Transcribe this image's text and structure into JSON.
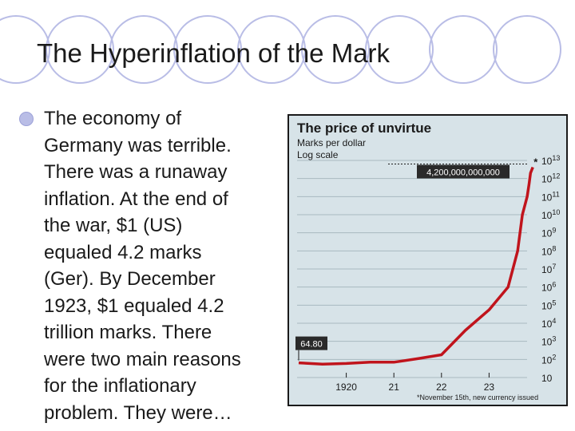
{
  "slide": {
    "title": "The Hyperinflation of the Mark",
    "body_lines": [
      "The economy of",
      "Germany was terrible.",
      "There was a runaway",
      "inflation.  At the end of",
      "the war, $1 (US)",
      "equaled 4.2 marks",
      "(Ger).  By December",
      "1923, $1 equaled 4.2",
      "trillion marks.  There",
      "were two main reasons",
      "for the inflationary",
      "problem.  They were…"
    ]
  },
  "colors": {
    "chart_bg": "#d7e3e8",
    "line": "#c0141c",
    "frame": "#1a1a1a",
    "ring": "#b9bde6"
  },
  "chart_data": {
    "type": "line",
    "title": "The price of unvirtue",
    "subtitle": "Marks per dollar",
    "scale_note": "Log scale",
    "y_scale": "log",
    "ylim": [
      10,
      10000000000000
    ],
    "y_tick_labels": [
      {
        "base": "10",
        "exp": "13"
      },
      {
        "base": "10",
        "exp": "12"
      },
      {
        "base": "10",
        "exp": "11"
      },
      {
        "base": "10",
        "exp": "10"
      },
      {
        "base": "10",
        "exp": "9"
      },
      {
        "base": "10",
        "exp": "8"
      },
      {
        "base": "10",
        "exp": "7"
      },
      {
        "base": "10",
        "exp": "6"
      },
      {
        "base": "10",
        "exp": "5"
      },
      {
        "base": "10",
        "exp": "4"
      },
      {
        "base": "10",
        "exp": "3"
      },
      {
        "base": "10",
        "exp": "2"
      },
      {
        "base": "10",
        "exp": ""
      }
    ],
    "x_tick_labels": [
      "1920",
      "21",
      "22",
      "23"
    ],
    "xlim": [
      1919,
      1924
    ],
    "x_ticks": [
      1920,
      1921,
      1922,
      1923
    ],
    "series": [
      {
        "x": [
          1919.0,
          1919.5,
          1920.0,
          1920.5,
          1921.0,
          1921.5,
          1922.0,
          1922.5,
          1923.0,
          1923.4,
          1923.6,
          1923.7,
          1923.76,
          1923.8,
          1923.84,
          1923.87,
          1923.92
        ],
        "values": [
          64.8,
          55,
          60,
          70,
          70,
          110,
          180,
          4000,
          55000,
          1000000,
          100000000,
          10000000000,
          40000000000,
          100000000000,
          500000000000,
          2000000000000,
          4200000000000
        ]
      }
    ],
    "annotations": {
      "start_value": "64.80",
      "end_value": "4,200,000,000,000",
      "asterisk": "*",
      "footnote": "*November 15th, new currency issued"
    }
  }
}
